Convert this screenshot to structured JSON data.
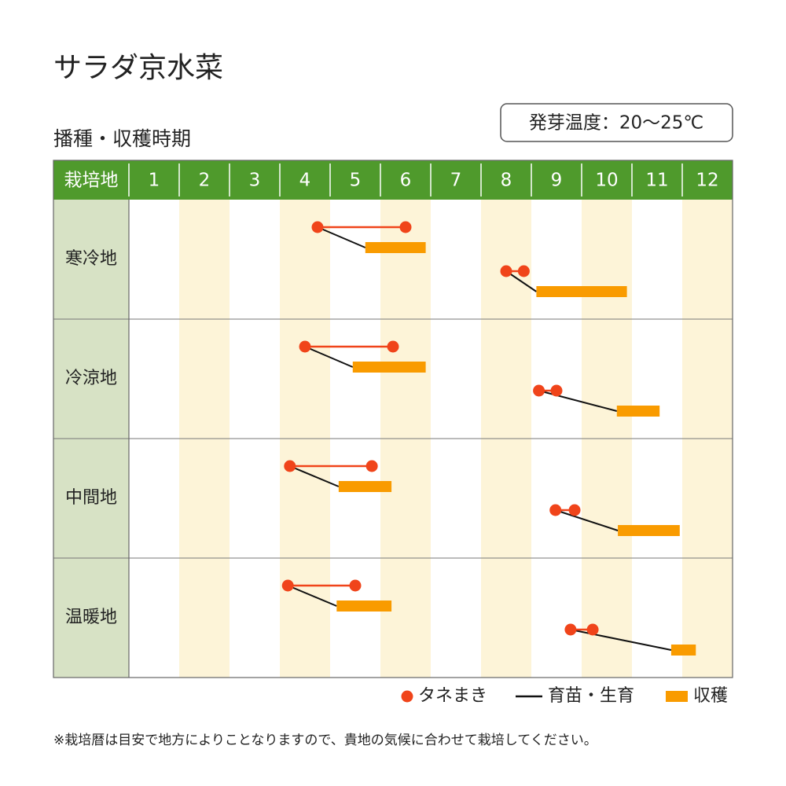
{
  "chart_data": {
    "type": "gantt",
    "title": "サラダ京水菜",
    "subtitle": "播種・収穫時期",
    "note": "発芽温度：20～25℃",
    "row_header": "栽培地",
    "categories": [
      1,
      2,
      3,
      4,
      5,
      6,
      7,
      8,
      9,
      10,
      11,
      12
    ],
    "xlim": [
      1,
      13
    ],
    "series": [
      {
        "name": "タネまき",
        "color": "#f0441a"
      },
      {
        "name": "育苗・生育",
        "color": "#111111"
      },
      {
        "name": "収穫",
        "color": "#f99b00"
      }
    ],
    "rows": [
      {
        "name": "寒冷地",
        "periods": [
          {
            "sowing": [
              4.75,
              6.5
            ],
            "harvest": [
              5.7,
              6.9
            ]
          },
          {
            "sowing": [
              8.5,
              8.85
            ],
            "harvest": [
              9.1,
              10.9
            ]
          }
        ]
      },
      {
        "name": "冷涼地",
        "periods": [
          {
            "sowing": [
              4.5,
              6.25
            ],
            "harvest": [
              5.45,
              6.9
            ]
          },
          {
            "sowing": [
              9.15,
              9.5
            ],
            "harvest": [
              10.7,
              11.55
            ]
          }
        ]
      },
      {
        "name": "中間地",
        "periods": [
          {
            "sowing": [
              4.2,
              5.83
            ],
            "harvest": [
              5.17,
              6.22
            ]
          },
          {
            "sowing": [
              9.48,
              9.86
            ],
            "harvest": [
              10.72,
              11.95
            ]
          }
        ]
      },
      {
        "name": "温暖地",
        "periods": [
          {
            "sowing": [
              4.16,
              5.5
            ],
            "harvest": [
              5.13,
              6.22
            ]
          },
          {
            "sowing": [
              9.78,
              10.22
            ],
            "harvest": [
              11.78,
              12.27
            ]
          }
        ]
      }
    ],
    "footnote": "※栽培暦は目安で地方によりことなりますので、貴地の気候に合わせて栽培してください。"
  }
}
